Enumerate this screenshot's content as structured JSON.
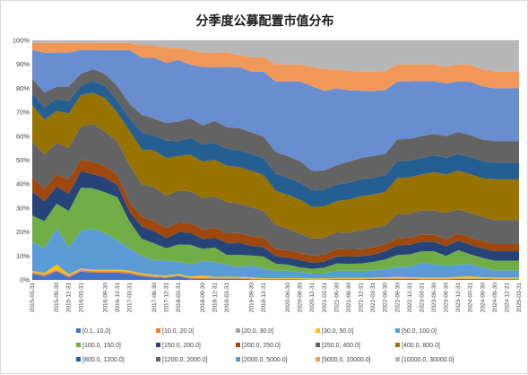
{
  "chart_data": {
    "type": "area",
    "stacked": true,
    "normalized": true,
    "title": "分季度公募配置市值分布",
    "xlabel": "",
    "ylabel": "",
    "ylim": [
      0,
      100
    ],
    "y_ticks": [
      "0%",
      "10%",
      "20%",
      "30%",
      "40%",
      "50%",
      "60%",
      "70%",
      "80%",
      "90%",
      "100%"
    ],
    "grid": true,
    "legend_position": "bottom",
    "x": [
      "2015-03-31",
      "2015-06-30",
      "2015-09-30",
      "2015-12-31",
      "2016-03-31",
      "2016-06-30",
      "2016-09-30",
      "2016-12-31",
      "2017-03-31",
      "2017-06-30",
      "2017-09-30",
      "2017-12-31",
      "2018-03-31",
      "2018-06-30",
      "2018-09-30",
      "2018-12-31",
      "2019-03-31",
      "2019-06-30",
      "2019-09-30",
      "2019-12-31",
      "2020-03-31",
      "2020-06-30",
      "2020-09-30",
      "2020-12-31",
      "2021-03-31",
      "2021-06-30",
      "2021-09-30",
      "2021-12-31",
      "2022-03-31",
      "2022-06-30",
      "2022-09-30",
      "2022-12-31",
      "2023-03-31",
      "2023-06-30",
      "2023-09-30",
      "2023-12-31",
      "2024-03-31",
      "2024-06-30",
      "2024-09-30",
      "2024-12-31",
      "2025-03-31"
    ],
    "x_tick_labels": [
      "2015-03-31",
      "2015-09-30",
      "2015-12-31",
      "2016-03-31",
      "2016-09-30",
      "2016-12-31",
      "2017-03-31",
      "2017-09-30",
      "2017-12-31",
      "2018-03-31",
      "2018-09-30",
      "2018-12-31",
      "2019-03-31",
      "2019-09-30",
      "2019-12-31",
      "2020-06-30",
      "2020-09-30",
      "2020-12-31",
      "2021-03-31",
      "2021-06-30",
      "2021-09-30",
      "2021-12-31",
      "2022-03-31",
      "2022-06-30",
      "2022-09-30",
      "2022-12-31",
      "2023-03-31",
      "2023-06-30",
      "2023-09-30",
      "2023-12-31",
      "2024-03-31",
      "2024-06-30",
      "2024-09-30",
      "2024-12-31",
      "2025-03-31"
    ],
    "series": [
      {
        "name": "[0.1, 10.0]",
        "color": "#4472c4",
        "values": [
          2.5,
          1.5,
          3.5,
          1.0,
          3.5,
          3.0,
          3.0,
          3.0,
          2.5,
          1.5,
          1.0,
          0.8,
          1.5,
          0.5,
          0.5,
          0.5,
          0.5,
          0.5,
          0.3,
          0.2,
          0.2,
          0.3,
          0.2,
          0.1,
          0.1,
          0.3,
          0.3,
          0.3,
          0.4,
          0.4,
          0.4,
          0.4,
          0.3,
          0.3,
          0.3,
          0.4,
          0.4,
          0.4,
          0.3,
          0.3,
          0.3
        ]
      },
      {
        "name": "[10.0, 20.0]",
        "color": "#ed7d31",
        "values": [
          0.5,
          0.5,
          0.5,
          0.5,
          0.5,
          0.5,
          0.5,
          0.5,
          0.5,
          0.5,
          0.4,
          0.3,
          0.3,
          0.3,
          0.3,
          0.2,
          0.2,
          0.2,
          0.2,
          0.1,
          0.1,
          0.1,
          0.1,
          0.1,
          0.1,
          0.1,
          0.1,
          0.1,
          0.1,
          0.2,
          0.2,
          0.2,
          0.2,
          0.2,
          0.2,
          0.2,
          0.2,
          0.2,
          0.2,
          0.2,
          0.2
        ]
      },
      {
        "name": "[20.0, 30.0]",
        "color": "#a5a5a5",
        "values": [
          0.3,
          0.3,
          0.3,
          0.3,
          0.3,
          0.3,
          0.3,
          0.3,
          0.3,
          0.2,
          0.2,
          0.2,
          0.2,
          0.2,
          0.2,
          0.2,
          0.2,
          0.2,
          0.2,
          0.1,
          0.1,
          0.1,
          0.1,
          0.1,
          0.1,
          0.1,
          0.1,
          0.1,
          0.1,
          0.1,
          0.1,
          0.1,
          0.1,
          0.1,
          0.1,
          0.1,
          0.1,
          0.1,
          0.1,
          0.1,
          0.1
        ]
      },
      {
        "name": "[30.0, 50.0]",
        "color": "#ffc000",
        "values": [
          0.5,
          0.5,
          2.0,
          0.5,
          0.5,
          0.5,
          0.5,
          0.5,
          0.5,
          0.4,
          0.4,
          0.4,
          0.4,
          0.4,
          0.8,
          0.4,
          0.4,
          0.4,
          0.4,
          0.3,
          0.3,
          0.3,
          0.3,
          0.3,
          0.3,
          0.3,
          0.3,
          0.3,
          0.4,
          0.4,
          0.6,
          0.4,
          0.4,
          0.4,
          0.4,
          0.6,
          0.8,
          0.4,
          0.4,
          0.4,
          0.4
        ]
      },
      {
        "name": "[50.0, 100.0]",
        "color": "#5b9bd5",
        "values": [
          12,
          10,
          15,
          11,
          16,
          17,
          15,
          12,
          9,
          7,
          6,
          6,
          5,
          5,
          6,
          6,
          5,
          4,
          5,
          4,
          3,
          3,
          2.5,
          2,
          2,
          3,
          3,
          3,
          3,
          3.5,
          4,
          4.5,
          6,
          5.5,
          5,
          5,
          5,
          4,
          3,
          3,
          3
        ]
      },
      {
        "name": "[100.0, 150.0]",
        "color": "#70ad47",
        "values": [
          11,
          11,
          10,
          15,
          18,
          17,
          17,
          18,
          11,
          7,
          7,
          5,
          7,
          8,
          5,
          6,
          4,
          5,
          4,
          5,
          3,
          2.5,
          2,
          2,
          2.5,
          3,
          3,
          3,
          3.5,
          4,
          5,
          5,
          5,
          5.5,
          4,
          6,
          4,
          4,
          4,
          4,
          4
        ]
      },
      {
        "name": "[150.0, 200.0]",
        "color": "#264478",
        "values": [
          10,
          8,
          7,
          7,
          7,
          6,
          6,
          5,
          4,
          5,
          5,
          4,
          5,
          5,
          4,
          4,
          5,
          5,
          4,
          4,
          3,
          3,
          3,
          2.5,
          2.5,
          3,
          3,
          3,
          3,
          3.5,
          4,
          4,
          4,
          4,
          4,
          4,
          4,
          4,
          4,
          4,
          4
        ]
      },
      {
        "name": "[200.0, 250.0]",
        "color": "#9e480e",
        "values": [
          6,
          5,
          5,
          6,
          5,
          5,
          5,
          4,
          4,
          4,
          4,
          4,
          4,
          4,
          4,
          4,
          4,
          4,
          4,
          4,
          3,
          3,
          3,
          3,
          3,
          3,
          3,
          3,
          3,
          3,
          3,
          3,
          3,
          3,
          3,
          3,
          3,
          3,
          3,
          3,
          3
        ]
      },
      {
        "name": "[250.0, 400.0]",
        "color": "#636363",
        "values": [
          15,
          14,
          13,
          13,
          14,
          16,
          14,
          14,
          15,
          13,
          14,
          13,
          13,
          13,
          13,
          13,
          13,
          12,
          12,
          11,
          10,
          9,
          8,
          7,
          7,
          7,
          7,
          8,
          8,
          8,
          10,
          10,
          10,
          10,
          11,
          10,
          10,
          10,
          10,
          10,
          10
        ]
      },
      {
        "name": "[400.0, 800.0]",
        "color": "#997300",
        "values": [
          15,
          14,
          13,
          14,
          13,
          13,
          14,
          12,
          14,
          14,
          15,
          15,
          14,
          15,
          15,
          15,
          15,
          15,
          15,
          15,
          14,
          14,
          14,
          13,
          13,
          13,
          14,
          14,
          14,
          14,
          15,
          15,
          15,
          16,
          16,
          16,
          16,
          16,
          17,
          17,
          17
        ]
      },
      {
        "name": "[800.0, 1200.0]",
        "color": "#255e91",
        "values": [
          5,
          5,
          5,
          5,
          4,
          5,
          5,
          5,
          5,
          7,
          6,
          7,
          6,
          7,
          7,
          7,
          7,
          7,
          7,
          7,
          7,
          7,
          7,
          7,
          7,
          7,
          7,
          7,
          7,
          7,
          7,
          7,
          7,
          7,
          7,
          7,
          7,
          7,
          7,
          7,
          7
        ]
      },
      {
        "name": "[1200.0, 2000.0]",
        "color": "#636363",
        "values": [
          6,
          6,
          5,
          6,
          5,
          5,
          5,
          6,
          6,
          7,
          7,
          7,
          8,
          8,
          8,
          9,
          9,
          9,
          9,
          9,
          9,
          9,
          9,
          8,
          8,
          8,
          9,
          9,
          9,
          9,
          9,
          9,
          9,
          9,
          9,
          9,
          9,
          9,
          9,
          9,
          9
        ]
      },
      {
        "name": "[2000.0, 5000.0]",
        "color": "#698ed0",
        "values": [
          12,
          16,
          14,
          14,
          10,
          8,
          10,
          15,
          22,
          23,
          25,
          24,
          25,
          22,
          24,
          22,
          25,
          25,
          25,
          27,
          29,
          31,
          33,
          35,
          33,
          32,
          30,
          28,
          27,
          27,
          24,
          24,
          23,
          22,
          22,
          21,
          22,
          22,
          22,
          22,
          22
        ]
      },
      {
        "name": "[5000.0, 10000.0]",
        "color": "#f1975a",
        "values": [
          3,
          4,
          4,
          4,
          3,
          3,
          3,
          3,
          3,
          5,
          5,
          6,
          5,
          6,
          6,
          6,
          6,
          5,
          6,
          6,
          7,
          7,
          7,
          8,
          9,
          8,
          8,
          8,
          8,
          8,
          7,
          7,
          7,
          7,
          7,
          7,
          7,
          7,
          7,
          7,
          7
        ]
      },
      {
        "name": "[10000.0, 30000.0]",
        "color": "#b7b7b7",
        "values": [
          1.0,
          1.0,
          1.0,
          1.0,
          1.0,
          1.0,
          1.0,
          1.0,
          1.0,
          2,
          2,
          3,
          3,
          4,
          5,
          5,
          5,
          6,
          7,
          7,
          10,
          10,
          10,
          11,
          12,
          12,
          13,
          13,
          13,
          13,
          10,
          10,
          10,
          10,
          11,
          10,
          10,
          12,
          13,
          13,
          13
        ]
      }
    ]
  }
}
